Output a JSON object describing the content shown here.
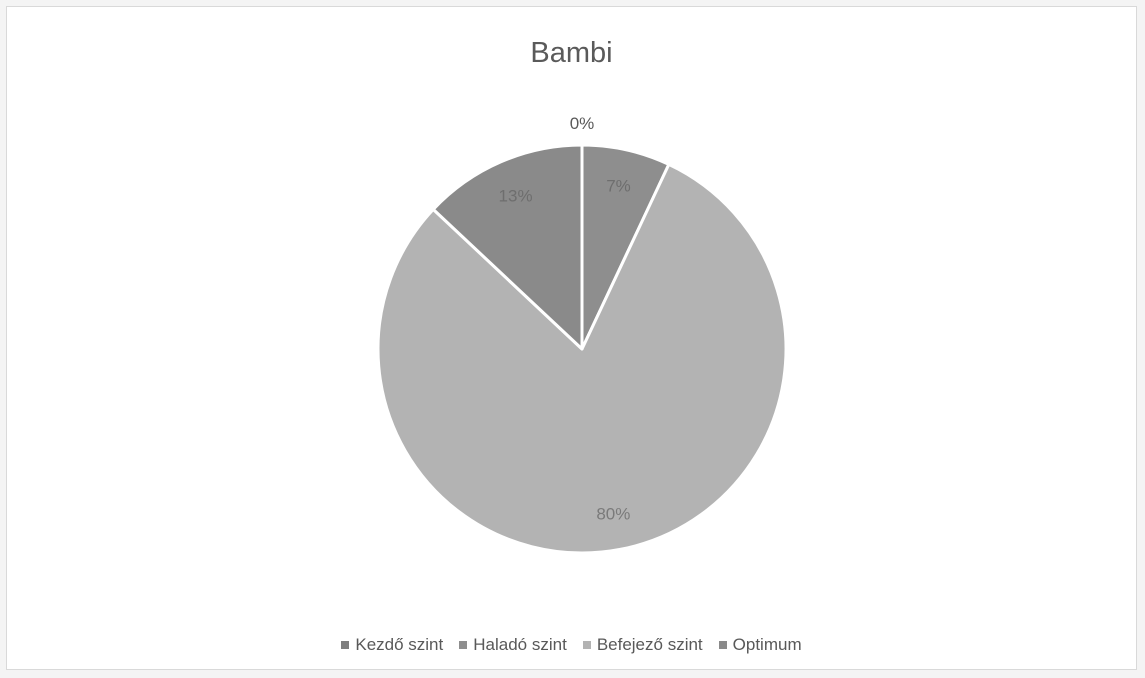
{
  "chart_data": {
    "type": "pie",
    "title": "Bambi",
    "categories": [
      "Kezdő szint",
      "Haladó szint",
      "Befejező szint",
      "Optimum"
    ],
    "values": [
      0,
      7,
      80,
      13
    ],
    "data_labels": [
      "0%",
      "7%",
      "80%",
      "13%"
    ],
    "colors": [
      "#7f7f7f",
      "#8e8e8e",
      "#b3b3b3",
      "#8a8a8a"
    ],
    "legend_position": "bottom"
  }
}
